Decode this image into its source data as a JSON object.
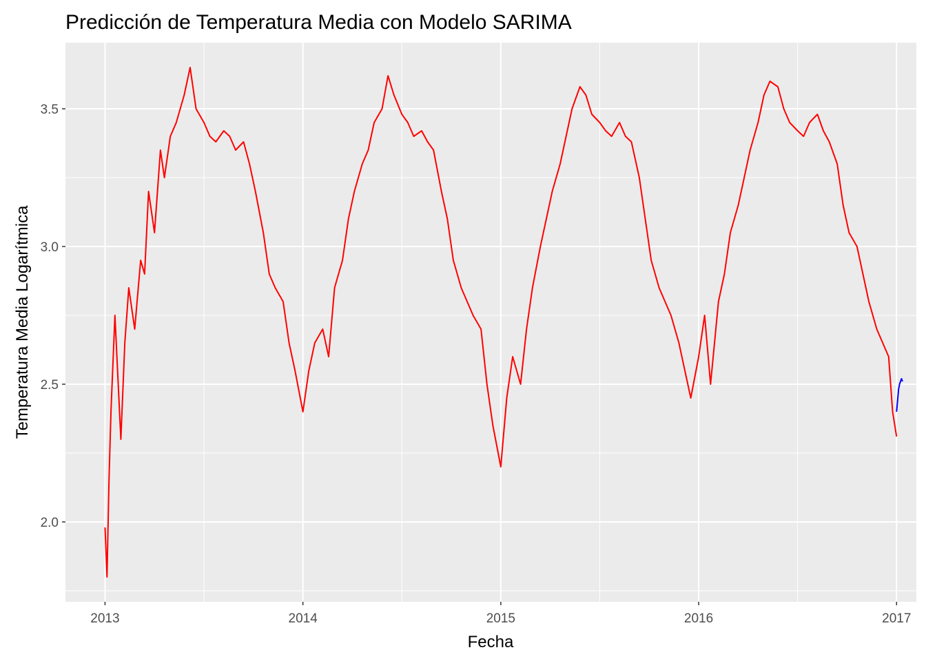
{
  "chart_data": {
    "type": "line",
    "title": "Predicción de Temperatura Media con Modelo SARIMA",
    "xlabel": "Fecha",
    "ylabel": "Temperatura Media Logarítmica",
    "x_range": [
      2012.8,
      2017.1
    ],
    "ylim": [
      1.71,
      3.74
    ],
    "x_ticks": [
      2013,
      2014,
      2015,
      2016,
      2017
    ],
    "x_tick_labels": [
      "2013",
      "2014",
      "2015",
      "2016",
      "2017"
    ],
    "y_ticks": [
      2.0,
      2.5,
      3.0,
      3.5
    ],
    "y_tick_labels": [
      "2.0",
      "2.5",
      "3.0",
      "3.5"
    ],
    "grid": true,
    "background": "#ebebeb",
    "series": [
      {
        "color": "#ff0000",
        "x": [
          2013.0,
          2013.01,
          2013.02,
          2013.03,
          2013.05,
          2013.08,
          2013.1,
          2013.12,
          2013.15,
          2013.18,
          2013.2,
          2013.22,
          2013.25,
          2013.28,
          2013.3,
          2013.33,
          2013.36,
          2013.4,
          2013.43,
          2013.46,
          2013.5,
          2013.53,
          2013.56,
          2013.6,
          2013.63,
          2013.66,
          2013.7,
          2013.73,
          2013.76,
          2013.8,
          2013.83,
          2013.86,
          2013.9,
          2013.93,
          2013.96,
          2014.0,
          2014.03,
          2014.06,
          2014.1,
          2014.13,
          2014.16,
          2014.2,
          2014.23,
          2014.26,
          2014.3,
          2014.33,
          2014.36,
          2014.4,
          2014.43,
          2014.46,
          2014.5,
          2014.53,
          2014.56,
          2014.6,
          2014.63,
          2014.66,
          2014.7,
          2014.73,
          2014.76,
          2014.8,
          2014.83,
          2014.86,
          2014.9,
          2014.93,
          2014.96,
          2015.0,
          2015.03,
          2015.06,
          2015.1,
          2015.13,
          2015.16,
          2015.2,
          2015.23,
          2015.26,
          2015.3,
          2015.33,
          2015.36,
          2015.4,
          2015.43,
          2015.46,
          2015.5,
          2015.53,
          2015.56,
          2015.6,
          2015.63,
          2015.66,
          2015.7,
          2015.73,
          2015.76,
          2015.8,
          2015.83,
          2015.86,
          2015.9,
          2015.93,
          2015.96,
          2016.0,
          2016.03,
          2016.06,
          2016.1,
          2016.13,
          2016.16,
          2016.2,
          2016.23,
          2016.26,
          2016.3,
          2016.33,
          2016.36,
          2016.4,
          2016.43,
          2016.46,
          2016.5,
          2016.53,
          2016.56,
          2016.6,
          2016.63,
          2016.66,
          2016.7,
          2016.73,
          2016.76,
          2016.8,
          2016.83,
          2016.86,
          2016.9,
          2016.93,
          2016.96,
          2016.98,
          2017.0
        ],
        "y": [
          1.98,
          1.8,
          2.15,
          2.4,
          2.75,
          2.3,
          2.65,
          2.85,
          2.7,
          2.95,
          2.9,
          3.2,
          3.05,
          3.35,
          3.25,
          3.4,
          3.45,
          3.55,
          3.65,
          3.5,
          3.45,
          3.4,
          3.38,
          3.42,
          3.4,
          3.35,
          3.38,
          3.3,
          3.2,
          3.05,
          2.9,
          2.85,
          2.8,
          2.65,
          2.55,
          2.4,
          2.55,
          2.65,
          2.7,
          2.6,
          2.85,
          2.95,
          3.1,
          3.2,
          3.3,
          3.35,
          3.45,
          3.5,
          3.62,
          3.55,
          3.48,
          3.45,
          3.4,
          3.42,
          3.38,
          3.35,
          3.2,
          3.1,
          2.95,
          2.85,
          2.8,
          2.75,
          2.7,
          2.5,
          2.35,
          2.2,
          2.45,
          2.6,
          2.5,
          2.7,
          2.85,
          3.0,
          3.1,
          3.2,
          3.3,
          3.4,
          3.5,
          3.58,
          3.55,
          3.48,
          3.45,
          3.42,
          3.4,
          3.45,
          3.4,
          3.38,
          3.25,
          3.1,
          2.95,
          2.85,
          2.8,
          2.75,
          2.65,
          2.55,
          2.45,
          2.6,
          2.75,
          2.5,
          2.8,
          2.9,
          3.05,
          3.15,
          3.25,
          3.35,
          3.45,
          3.55,
          3.6,
          3.58,
          3.5,
          3.45,
          3.42,
          3.4,
          3.45,
          3.48,
          3.42,
          3.38,
          3.3,
          3.15,
          3.05,
          3.0,
          2.9,
          2.8,
          2.7,
          2.65,
          2.6,
          2.4,
          2.31
        ]
      },
      {
        "color": "#0000ff",
        "x": [
          2017.0,
          2017.01,
          2017.015,
          2017.02,
          2017.025,
          2017.03
        ],
        "y": [
          2.4,
          2.48,
          2.5,
          2.51,
          2.52,
          2.51
        ]
      }
    ]
  }
}
